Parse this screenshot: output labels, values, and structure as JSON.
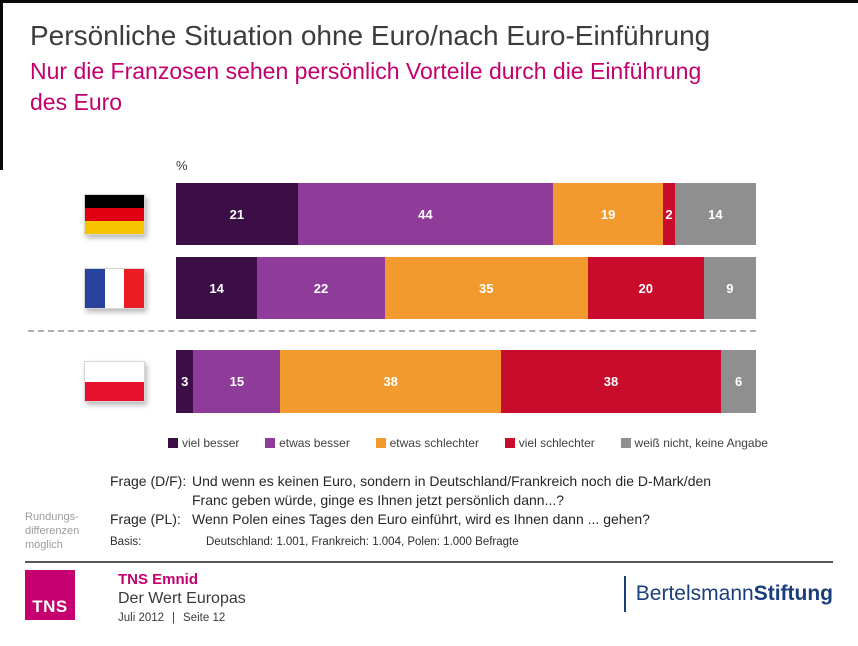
{
  "header": {
    "title": "Persönliche Situation ohne Euro/nach Euro-Einführung",
    "subtitle": "Nur die Franzosen sehen persönlich Vorteile durch die Einführung\ndes Euro"
  },
  "chart_data": {
    "type": "bar",
    "stacked": true,
    "orientation": "horizontal",
    "unit_label": "%",
    "xlim": [
      0,
      100
    ],
    "grid": false,
    "legend_position": "bottom",
    "categories": [
      "Deutschland",
      "Frankreich",
      "Polen"
    ],
    "flags": [
      "de",
      "fr",
      "pl"
    ],
    "separator_note": "dashed divider between Frankreich and Polen rows",
    "series": [
      {
        "name": "viel besser",
        "color": "#3c0e46",
        "values": [
          21,
          14,
          3
        ]
      },
      {
        "name": "etwas besser",
        "color": "#8e3b9a",
        "values": [
          44,
          22,
          15
        ]
      },
      {
        "name": "etwas schlechter",
        "color": "#f29a2e",
        "values": [
          19,
          35,
          38
        ]
      },
      {
        "name": "viel schlechter",
        "color": "#c90b2c",
        "values": [
          2,
          20,
          38
        ]
      },
      {
        "name": "weiß nicht, keine Angabe",
        "color": "#8f8f8f",
        "values": [
          14,
          9,
          6
        ]
      }
    ]
  },
  "notes": {
    "side_note": "Rundungs-\ndifferenzen\nmöglich",
    "rows": [
      {
        "label": "Frage (D/F):",
        "text": "Und wenn es keinen Euro, sondern in Deutschland/Frankreich noch die D-Mark/den\nFranc geben würde, ginge es Ihnen jetzt persönlich dann...?"
      },
      {
        "label": "Frage (PL):",
        "text": "Wenn Polen eines Tages den Euro einführt, wird es Ihnen dann ... gehen?"
      },
      {
        "label": "Basis:",
        "text": "Deutschland: 1.001, Frankreich: 1.004, Polen: 1.000 Befragte"
      }
    ]
  },
  "footer": {
    "logo_text": "TNS",
    "brand": "TNS Emnid",
    "project": "Der Wert Europas",
    "date": "Juli 2012",
    "divider": "|",
    "page": "Seite 12",
    "right_logo_part1": "Bertelsmann",
    "right_logo_part2": "Stiftung"
  },
  "colors": {
    "accent_magenta": "#c4006e",
    "brand_navy": "#1a3d7c",
    "title_gray": "#3c3c3c"
  }
}
